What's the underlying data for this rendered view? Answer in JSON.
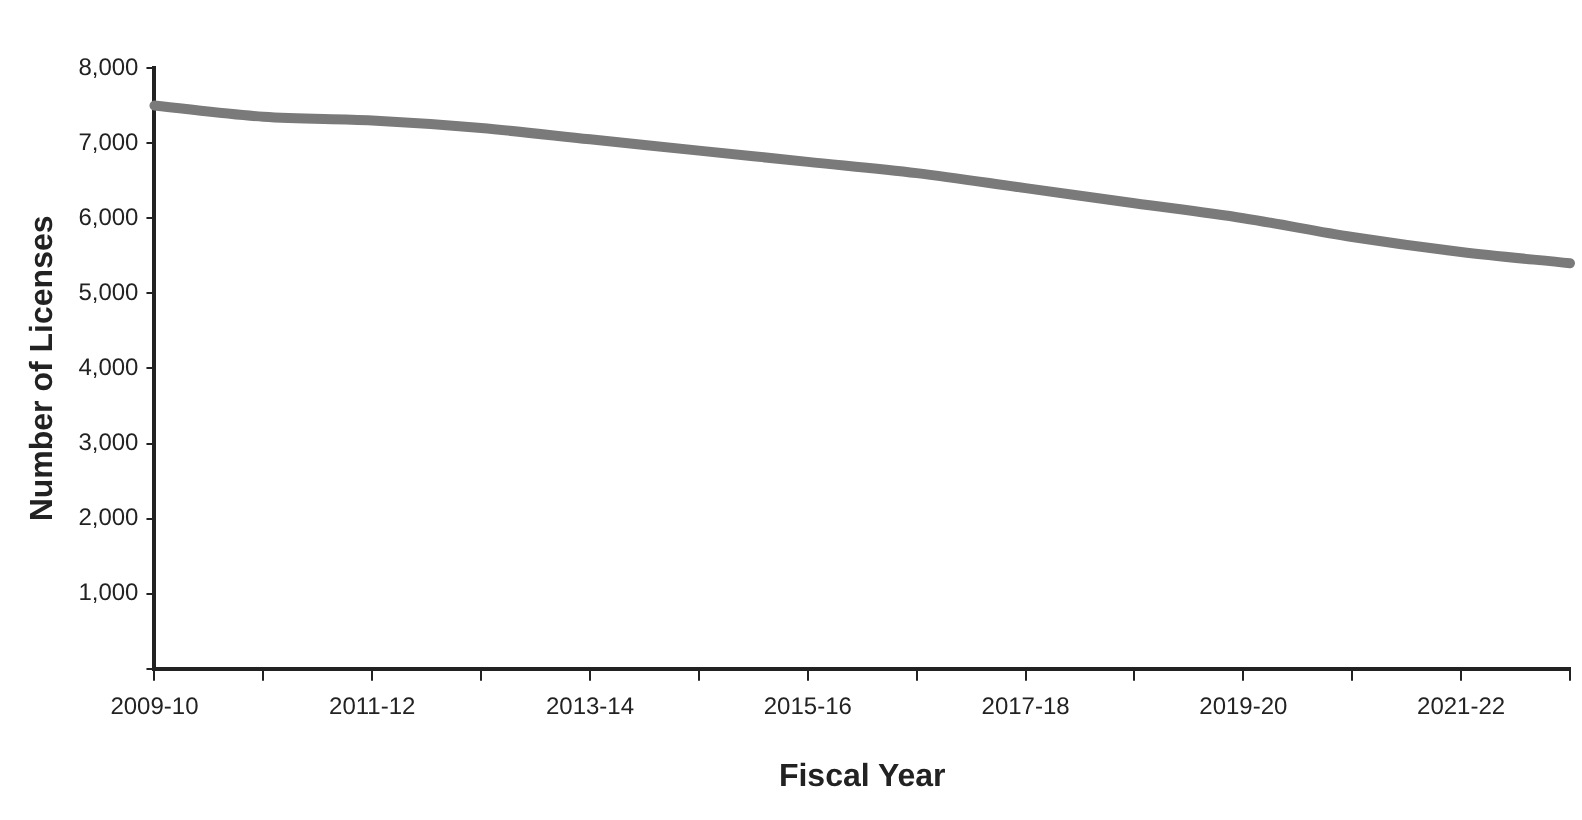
{
  "chart_data": {
    "type": "line",
    "xlabel": "Fiscal Year",
    "ylabel": "Number of Licenses",
    "categories": [
      "2009-10",
      null,
      "2011-12",
      null,
      "2013-14",
      null,
      "2015-16",
      null,
      "2017-18",
      null,
      "2019-20",
      null,
      "2021-22",
      null
    ],
    "values": [
      7500,
      7350,
      7300,
      7200,
      7050,
      6900,
      6750,
      6600,
      6400,
      6200,
      6000,
      5750,
      5550,
      5400
    ],
    "color": "#7a7a7a",
    "ylim": [
      0,
      8000
    ],
    "yticks": [
      {
        "value": 0,
        "label": null
      },
      {
        "value": 1000,
        "label": "1,000"
      },
      {
        "value": 2000,
        "label": "2,000"
      },
      {
        "value": 3000,
        "label": "3,000"
      },
      {
        "value": 4000,
        "label": "4,000"
      },
      {
        "value": 5000,
        "label": "5,000"
      },
      {
        "value": 6000,
        "label": "6,000"
      },
      {
        "value": 7000,
        "label": "7,000"
      },
      {
        "value": 8000,
        "label": "8,000"
      }
    ],
    "grid": false,
    "legend": false,
    "marker": "none",
    "line_style": "solid"
  }
}
